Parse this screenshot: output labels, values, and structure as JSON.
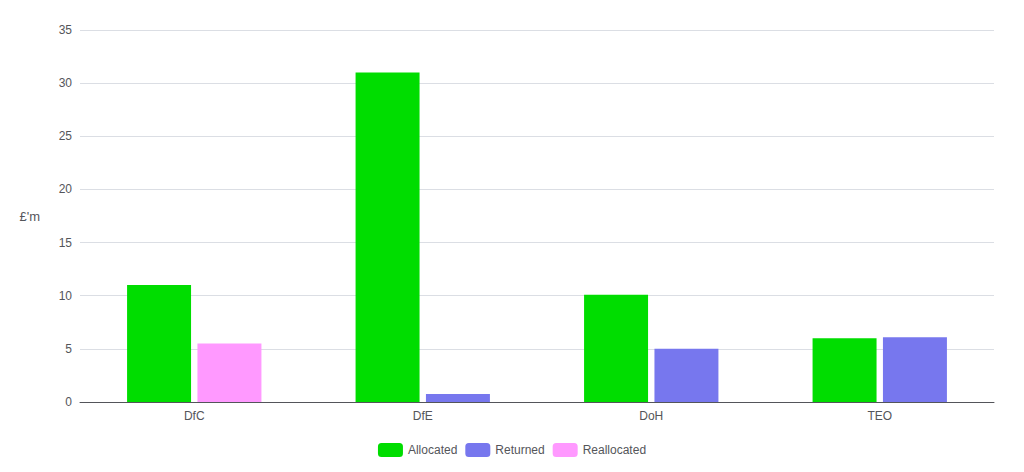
{
  "chart_data": {
    "type": "bar",
    "categories": [
      "DfC",
      "DfE",
      "DoH",
      "TEO"
    ],
    "series": [
      {
        "name": "Allocated",
        "color": "#00dd00",
        "values": [
          11,
          31,
          10.1,
          6
        ]
      },
      {
        "name": "Returned",
        "color": "#7777ee",
        "values": [
          0,
          0.75,
          5,
          6.1
        ]
      },
      {
        "name": "Reallocated",
        "color": "#ff99ff",
        "values": [
          5.5,
          0,
          0,
          0
        ]
      }
    ],
    "ylabel": "£'m",
    "ylim": [
      0,
      35
    ],
    "yticks": [
      0,
      5,
      10,
      15,
      20,
      25,
      30,
      35
    ],
    "grid": true,
    "legend": "bottom"
  }
}
